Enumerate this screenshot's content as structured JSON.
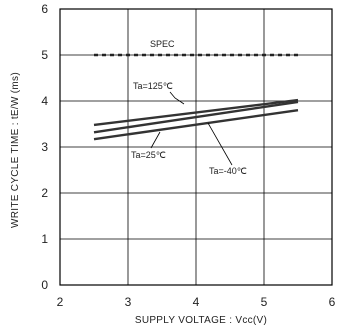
{
  "chart_data": {
    "type": "line",
    "title": "",
    "xlabel": "SUPPLY VOLTAGE : Vcc(V)",
    "ylabel": "WRITE CYCLE TIME : tE/W (ms)",
    "xlim": [
      2,
      6
    ],
    "ylim": [
      0,
      6
    ],
    "x_ticks": [
      "2",
      "3",
      "4",
      "5",
      "6"
    ],
    "y_ticks": [
      "0",
      "1",
      "2",
      "3",
      "4",
      "5",
      "6"
    ],
    "grid": true,
    "series": [
      {
        "name": "SPEC",
        "style": "dashed",
        "x": [
          2.5,
          5.5
        ],
        "y": [
          5.0,
          5.0
        ]
      },
      {
        "name": "Ta=125℃",
        "style": "solid",
        "x": [
          2.5,
          5.5
        ],
        "y": [
          3.48,
          4.02
        ]
      },
      {
        "name": "Ta=25℃",
        "style": "solid",
        "x": [
          2.5,
          5.5
        ],
        "y": [
          3.32,
          3.98
        ]
      },
      {
        "name": "Ta=-40℃",
        "style": "solid",
        "x": [
          2.5,
          5.5
        ],
        "y": [
          3.17,
          3.8
        ]
      }
    ]
  }
}
